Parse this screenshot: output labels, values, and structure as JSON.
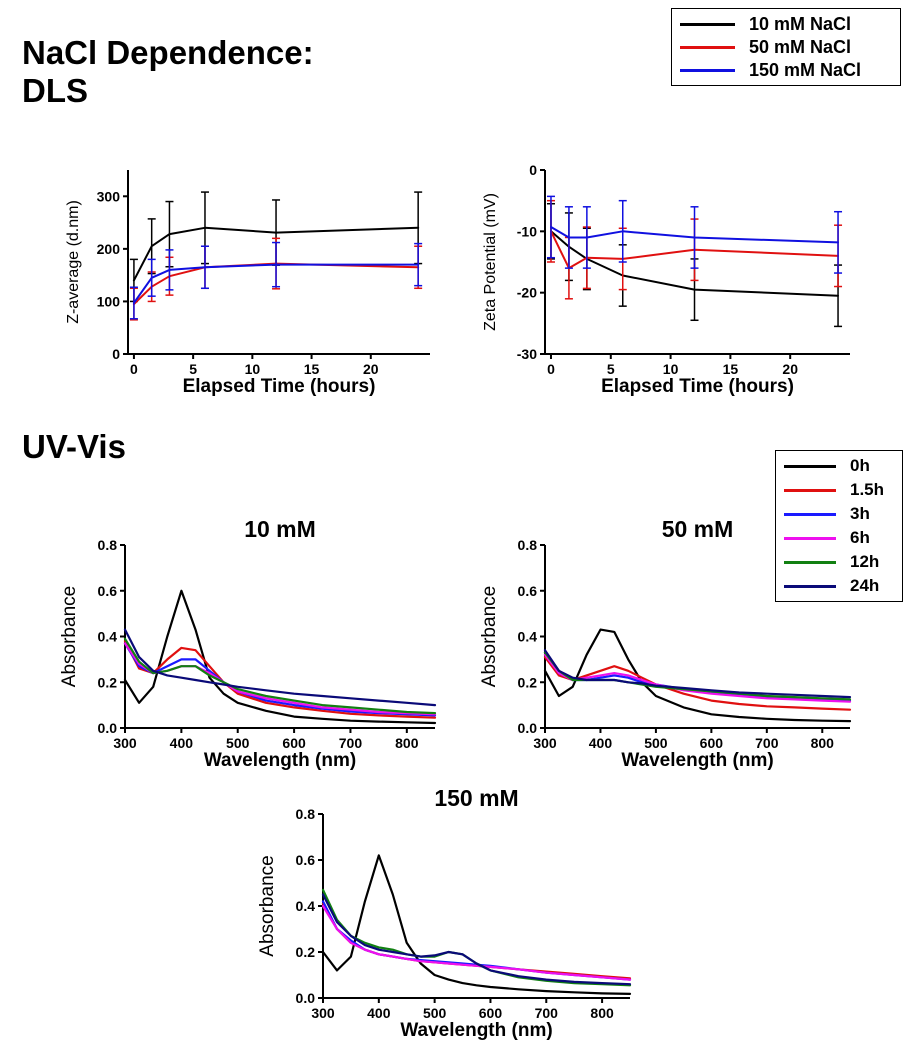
{
  "headings": {
    "dls_line1": "NaCl Dependence:",
    "dls_line2": "DLS",
    "uvvis": "UV-Vis"
  },
  "salt_legend": [
    {
      "label": "10 mM NaCl",
      "color": "#000000"
    },
    {
      "label": "50 mM NaCl",
      "color": "#e01010"
    },
    {
      "label": "150 mM NaCl",
      "color": "#1010e0"
    }
  ],
  "time_legend": [
    {
      "label": "0h",
      "color": "#000000"
    },
    {
      "label": "1.5h",
      "color": "#e01010"
    },
    {
      "label": "3h",
      "color": "#1a1aff"
    },
    {
      "label": "6h",
      "color": "#ee10ee"
    },
    {
      "label": "12h",
      "color": "#128012"
    },
    {
      "label": "24h",
      "color": "#0a0a78"
    }
  ],
  "chart_data": [
    {
      "id": "zavg",
      "type": "line",
      "title": "",
      "xlabel": "Elapsed Time (hours)",
      "ylabel": "Z-average (d.nm)",
      "xlim": [
        -0.5,
        25
      ],
      "ylim": [
        0,
        350
      ],
      "xticks": [
        0,
        5,
        10,
        15,
        20
      ],
      "yticks": [
        0,
        100,
        200,
        300
      ],
      "x": [
        0,
        1.5,
        3,
        6,
        12,
        24
      ],
      "series": [
        {
          "name": "10 mM NaCl",
          "color": "#000000",
          "values": [
            140,
            205,
            228,
            240,
            231,
            240
          ],
          "errors": [
            40,
            52,
            62,
            68,
            62,
            68
          ]
        },
        {
          "name": "50 mM NaCl",
          "color": "#e01010",
          "values": [
            95,
            128,
            148,
            165,
            172,
            165
          ],
          "errors": [
            30,
            28,
            36,
            40,
            48,
            40
          ]
        },
        {
          "name": "150 mM NaCl",
          "color": "#1010e0",
          "values": [
            97,
            145,
            160,
            165,
            170,
            170
          ],
          "errors": [
            30,
            35,
            38,
            40,
            42,
            40
          ]
        }
      ]
    },
    {
      "id": "zeta",
      "type": "line",
      "title": "",
      "xlabel": "Elapsed Time (hours)",
      "ylabel": "Zeta Potential (mV)",
      "xlim": [
        -0.5,
        25
      ],
      "ylim": [
        -30,
        0
      ],
      "xticks": [
        0,
        5,
        10,
        15,
        20
      ],
      "yticks": [
        0,
        -10,
        -20,
        -30
      ],
      "x": [
        0,
        1.5,
        3,
        6,
        12,
        24
      ],
      "series": [
        {
          "name": "10 mM NaCl",
          "color": "#000000",
          "values": [
            -10,
            -12.5,
            -14.5,
            -17.2,
            -19.5,
            -20.5
          ],
          "errors": [
            4.5,
            5.5,
            5,
            5,
            5,
            5
          ]
        },
        {
          "name": "50 mM NaCl",
          "color": "#e01010",
          "values": [
            -10,
            -16,
            -14.3,
            -14.5,
            -13,
            -14
          ],
          "errors": [
            5,
            5,
            5,
            5,
            5,
            5
          ]
        },
        {
          "name": "150 mM NaCl",
          "color": "#1010e0",
          "values": [
            -9.3,
            -11,
            -11,
            -10,
            -11,
            -11.8
          ],
          "errors": [
            5,
            5,
            5,
            5,
            5,
            5
          ]
        }
      ]
    },
    {
      "id": "uv10",
      "type": "line",
      "title": "10 mM",
      "xlabel": "Wavelength (nm)",
      "ylabel": "Absorbance",
      "xlim": [
        300,
        850
      ],
      "ylim": [
        0,
        0.8
      ],
      "xticks": [
        300,
        400,
        500,
        600,
        700,
        800
      ],
      "yticks": [
        0.0,
        0.2,
        0.4,
        0.6,
        0.8
      ],
      "x": [
        300,
        325,
        350,
        375,
        400,
        425,
        450,
        475,
        500,
        550,
        600,
        650,
        700,
        750,
        800,
        850
      ],
      "series": [
        {
          "name": "0h",
          "color": "#000000",
          "values": [
            0.21,
            0.11,
            0.18,
            0.4,
            0.6,
            0.43,
            0.22,
            0.15,
            0.11,
            0.075,
            0.05,
            0.04,
            0.032,
            0.028,
            0.025,
            0.022
          ]
        },
        {
          "name": "1.5h",
          "color": "#e01010",
          "values": [
            0.38,
            0.26,
            0.24,
            0.3,
            0.35,
            0.34,
            0.27,
            0.2,
            0.15,
            0.11,
            0.09,
            0.075,
            0.062,
            0.055,
            0.05,
            0.045
          ]
        },
        {
          "name": "3h",
          "color": "#1a1aff",
          "values": [
            0.37,
            0.27,
            0.24,
            0.27,
            0.3,
            0.3,
            0.25,
            0.2,
            0.16,
            0.12,
            0.1,
            0.085,
            0.072,
            0.065,
            0.06,
            0.055
          ]
        },
        {
          "name": "6h",
          "color": "#ee10ee",
          "values": [
            0.37,
            0.28,
            0.24,
            0.25,
            0.27,
            0.27,
            0.24,
            0.2,
            0.16,
            0.13,
            0.11,
            0.09,
            0.08,
            0.07,
            0.065,
            0.06
          ]
        },
        {
          "name": "12h",
          "color": "#128012",
          "values": [
            0.39,
            0.29,
            0.24,
            0.25,
            0.27,
            0.27,
            0.23,
            0.2,
            0.17,
            0.14,
            0.12,
            0.1,
            0.09,
            0.08,
            0.07,
            0.065
          ]
        },
        {
          "name": "24h",
          "color": "#0a0a78",
          "values": [
            0.43,
            0.31,
            0.25,
            0.23,
            0.22,
            0.21,
            0.2,
            0.19,
            0.18,
            0.165,
            0.15,
            0.14,
            0.13,
            0.12,
            0.11,
            0.1
          ]
        }
      ]
    },
    {
      "id": "uv50",
      "type": "line",
      "title": "50 mM",
      "xlabel": "Wavelength (nm)",
      "ylabel": "Absorbance",
      "xlim": [
        300,
        850
      ],
      "ylim": [
        0,
        0.8
      ],
      "xticks": [
        300,
        400,
        500,
        600,
        700,
        800
      ],
      "yticks": [
        0.0,
        0.2,
        0.4,
        0.6,
        0.8
      ],
      "x": [
        300,
        325,
        350,
        375,
        400,
        425,
        450,
        475,
        500,
        550,
        600,
        650,
        700,
        750,
        800,
        850
      ],
      "series": [
        {
          "name": "0h",
          "color": "#000000",
          "values": [
            0.25,
            0.14,
            0.18,
            0.32,
            0.43,
            0.42,
            0.3,
            0.2,
            0.14,
            0.09,
            0.06,
            0.048,
            0.04,
            0.035,
            0.032,
            0.03
          ]
        },
        {
          "name": "1.5h",
          "color": "#e01010",
          "values": [
            0.31,
            0.23,
            0.21,
            0.23,
            0.25,
            0.27,
            0.25,
            0.22,
            0.19,
            0.15,
            0.12,
            0.105,
            0.095,
            0.09,
            0.085,
            0.08
          ]
        },
        {
          "name": "3h",
          "color": "#1a1aff",
          "values": [
            0.33,
            0.24,
            0.21,
            0.21,
            0.22,
            0.23,
            0.22,
            0.2,
            0.19,
            0.17,
            0.155,
            0.145,
            0.135,
            0.13,
            0.125,
            0.12
          ]
        },
        {
          "name": "6h",
          "color": "#ee10ee",
          "values": [
            0.32,
            0.24,
            0.21,
            0.22,
            0.23,
            0.24,
            0.23,
            0.21,
            0.19,
            0.165,
            0.15,
            0.14,
            0.13,
            0.125,
            0.12,
            0.115
          ]
        },
        {
          "name": "12h",
          "color": "#128012",
          "values": [
            0.33,
            0.25,
            0.21,
            0.21,
            0.21,
            0.21,
            0.2,
            0.19,
            0.18,
            0.17,
            0.16,
            0.15,
            0.14,
            0.135,
            0.13,
            0.125
          ]
        },
        {
          "name": "24h",
          "color": "#0a0a78",
          "values": [
            0.34,
            0.25,
            0.22,
            0.21,
            0.21,
            0.21,
            0.2,
            0.195,
            0.185,
            0.175,
            0.165,
            0.155,
            0.15,
            0.145,
            0.14,
            0.135
          ]
        }
      ]
    },
    {
      "id": "uv150",
      "type": "line",
      "title": "150 mM",
      "xlabel": "Wavelength (nm)",
      "ylabel": "Absorbance",
      "xlim": [
        300,
        850
      ],
      "ylim": [
        0,
        0.8
      ],
      "xticks": [
        300,
        400,
        500,
        600,
        700,
        800
      ],
      "yticks": [
        0.0,
        0.2,
        0.4,
        0.6,
        0.8
      ],
      "x": [
        300,
        325,
        350,
        375,
        400,
        425,
        450,
        475,
        500,
        525,
        550,
        575,
        600,
        650,
        700,
        750,
        800,
        850
      ],
      "series": [
        {
          "name": "0h",
          "color": "#000000",
          "values": [
            0.2,
            0.12,
            0.18,
            0.42,
            0.62,
            0.45,
            0.24,
            0.15,
            0.1,
            0.08,
            0.065,
            0.055,
            0.048,
            0.038,
            0.03,
            0.025,
            0.02,
            0.018
          ]
        },
        {
          "name": "1.5h",
          "color": "#e01010",
          "values": [
            0.41,
            0.3,
            0.24,
            0.21,
            0.19,
            0.18,
            0.17,
            0.16,
            0.155,
            0.15,
            0.145,
            0.14,
            0.135,
            0.125,
            0.115,
            0.105,
            0.095,
            0.085
          ]
        },
        {
          "name": "3h",
          "color": "#1a1aff",
          "values": [
            0.42,
            0.3,
            0.25,
            0.21,
            0.19,
            0.18,
            0.17,
            0.165,
            0.16,
            0.155,
            0.15,
            0.145,
            0.14,
            0.125,
            0.11,
            0.1,
            0.09,
            0.08
          ]
        },
        {
          "name": "6h",
          "color": "#ee10ee",
          "values": [
            0.4,
            0.3,
            0.24,
            0.21,
            0.19,
            0.18,
            0.17,
            0.16,
            0.155,
            0.15,
            0.145,
            0.14,
            0.135,
            0.125,
            0.11,
            0.1,
            0.09,
            0.08
          ]
        },
        {
          "name": "12h",
          "color": "#128012",
          "values": [
            0.47,
            0.34,
            0.27,
            0.24,
            0.22,
            0.21,
            0.19,
            0.18,
            0.18,
            0.2,
            0.19,
            0.15,
            0.12,
            0.09,
            0.075,
            0.065,
            0.06,
            0.055
          ]
        },
        {
          "name": "24h",
          "color": "#0a0a78",
          "values": [
            0.45,
            0.33,
            0.27,
            0.23,
            0.21,
            0.2,
            0.19,
            0.18,
            0.185,
            0.2,
            0.19,
            0.15,
            0.12,
            0.095,
            0.08,
            0.07,
            0.065,
            0.06
          ]
        }
      ]
    }
  ]
}
